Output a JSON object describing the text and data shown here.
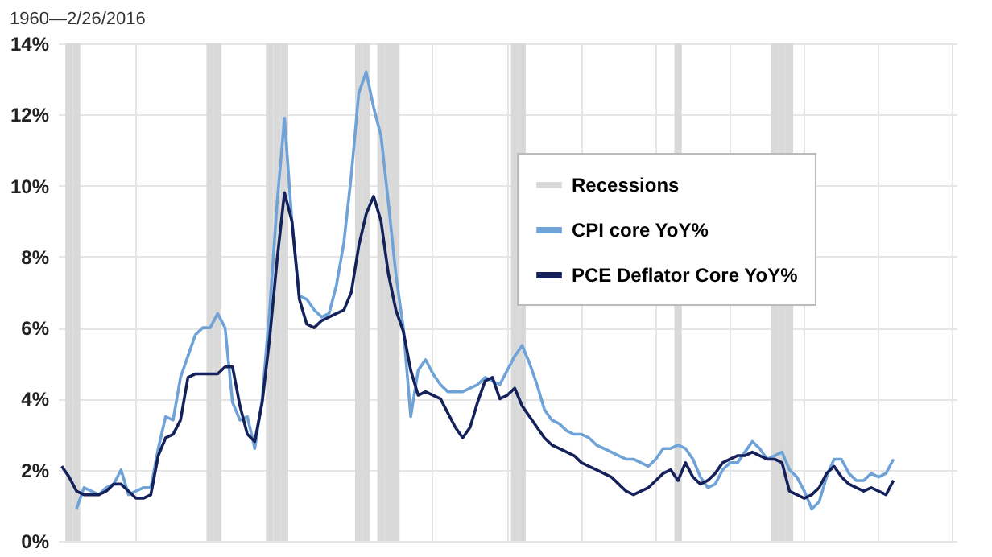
{
  "chart_data": {
    "type": "line",
    "title": "1960—2/26/2016",
    "categories": [
      null,
      null,
      null,
      null,
      null,
      null,
      null,
      null,
      null,
      null,
      null,
      null,
      null,
      null,
      null,
      null,
      null,
      null,
      null,
      null,
      null,
      null,
      null,
      null,
      null,
      null,
      null,
      null,
      null,
      null,
      null,
      null,
      null,
      null,
      null,
      null,
      null,
      null,
      null,
      null,
      null,
      null,
      null,
      null,
      null,
      null,
      null,
      null,
      null,
      null,
      null,
      null,
      null,
      null,
      null,
      null,
      null,
      null,
      null,
      null,
      null,
      null,
      null,
      null,
      null,
      null,
      null,
      null,
      null,
      null,
      null,
      null,
      null,
      null,
      null,
      null,
      null,
      null,
      null,
      null,
      null,
      null,
      null,
      null,
      null,
      null,
      null,
      null,
      null,
      null,
      null,
      null,
      null,
      null,
      null,
      null,
      null,
      null,
      null,
      null,
      null,
      null,
      null,
      null,
      null,
      null,
      null,
      null,
      null,
      null,
      null,
      null,
      null,
      null,
      null,
      null,
      null,
      null,
      null,
      null,
      null
    ],
    "ylim": [
      0,
      14
    ],
    "yticks": [
      {
        "value": 0,
        "label": "0%"
      },
      {
        "value": 2,
        "label": "2%"
      },
      {
        "value": 4,
        "label": "4%"
      },
      {
        "value": 6,
        "label": "6%"
      },
      {
        "value": 8,
        "label": "8%"
      },
      {
        "value": 10,
        "label": "10%"
      },
      {
        "value": 12,
        "label": "12%"
      },
      {
        "value": 14,
        "label": "14%"
      }
    ],
    "tick_labels": "y",
    "grid": true,
    "legend": "top right",
    "line_style": "solid",
    "marker": "none",
    "series": [
      {
        "name": "Recessions",
        "type": "bar",
        "color": "#d9d9d9",
        "values": [
          null,
          14,
          14,
          null,
          null,
          null,
          null,
          null,
          null,
          null,
          null,
          null,
          null,
          null,
          null,
          null,
          null,
          null,
          null,
          null,
          14,
          14,
          null,
          null,
          null,
          null,
          null,
          null,
          14,
          14,
          14,
          null,
          null,
          null,
          null,
          null,
          null,
          null,
          null,
          null,
          14,
          14,
          null,
          14,
          14,
          14,
          null,
          null,
          null,
          null,
          null,
          null,
          null,
          null,
          null,
          null,
          null,
          null,
          null,
          null,
          null,
          14,
          14,
          null,
          null,
          null,
          null,
          null,
          null,
          null,
          null,
          null,
          null,
          null,
          null,
          null,
          null,
          null,
          null,
          null,
          null,
          null,
          null,
          14,
          null,
          null,
          null,
          null,
          null,
          null,
          null,
          null,
          null,
          null,
          null,
          null,
          14,
          14,
          14,
          null,
          null,
          null,
          null,
          null,
          null,
          null,
          null,
          null,
          null,
          null,
          null,
          null,
          null,
          null,
          null,
          null,
          null,
          null,
          null,
          null,
          null
        ]
      },
      {
        "name": "CPI core YoY%",
        "color": "#6fa3d8",
        "values": [
          null,
          null,
          0.9,
          1.5,
          1.4,
          1.3,
          1.5,
          1.6,
          2.0,
          1.3,
          1.4,
          1.5,
          1.5,
          2.6,
          3.5,
          3.4,
          4.6,
          5.2,
          5.8,
          6.0,
          6.0,
          6.4,
          6.0,
          3.9,
          3.4,
          3.5,
          2.6,
          4.0,
          6.5,
          9.5,
          11.9,
          9.0,
          6.9,
          6.8,
          6.5,
          6.3,
          6.4,
          7.2,
          8.4,
          10.3,
          12.6,
          13.2,
          12.2,
          11.4,
          9.5,
          7.5,
          6.0,
          3.5,
          4.8,
          5.1,
          4.7,
          4.4,
          4.2,
          4.2,
          4.2,
          4.3,
          4.4,
          4.6,
          4.5,
          4.4,
          4.8,
          5.2,
          5.5,
          5.0,
          4.4,
          3.7,
          3.4,
          3.3,
          3.1,
          3.0,
          3.0,
          2.9,
          2.7,
          2.6,
          2.5,
          2.4,
          2.3,
          2.3,
          2.2,
          2.1,
          2.3,
          2.6,
          2.6,
          2.7,
          2.6,
          2.3,
          1.8,
          1.5,
          1.6,
          2.0,
          2.2,
          2.2,
          2.5,
          2.8,
          2.6,
          2.3,
          2.4,
          2.5,
          2.0,
          1.8,
          1.4,
          0.9,
          1.1,
          1.8,
          2.3,
          2.3,
          1.9,
          1.7,
          1.7,
          1.9,
          1.8,
          1.9,
          2.3,
          null,
          null,
          null,
          null,
          null,
          null,
          null,
          null
        ]
      },
      {
        "name": "PCE Deflator Core YoY%",
        "color": "#14215a",
        "values": [
          2.1,
          1.8,
          1.4,
          1.3,
          1.3,
          1.3,
          1.4,
          1.6,
          1.6,
          1.4,
          1.2,
          1.2,
          1.3,
          2.4,
          2.9,
          3.0,
          3.4,
          4.6,
          4.7,
          4.7,
          4.7,
          4.7,
          4.9,
          4.9,
          3.8,
          3.0,
          2.8,
          3.9,
          5.7,
          7.9,
          9.8,
          9.0,
          6.8,
          6.1,
          6.0,
          6.2,
          6.3,
          6.4,
          6.5,
          7.0,
          8.3,
          9.2,
          9.7,
          9.0,
          7.5,
          6.5,
          5.9,
          4.8,
          4.1,
          4.2,
          4.1,
          4.0,
          3.6,
          3.2,
          2.9,
          3.2,
          3.9,
          4.5,
          4.6,
          4.0,
          4.1,
          4.3,
          3.8,
          3.5,
          3.2,
          2.9,
          2.7,
          2.6,
          2.5,
          2.4,
          2.2,
          2.1,
          2.0,
          1.9,
          1.8,
          1.6,
          1.4,
          1.3,
          1.4,
          1.5,
          1.7,
          1.9,
          2.0,
          1.7,
          2.2,
          1.8,
          1.6,
          1.7,
          1.9,
          2.2,
          2.3,
          2.4,
          2.4,
          2.5,
          2.4,
          2.3,
          2.3,
          2.2,
          1.4,
          1.3,
          1.2,
          1.3,
          1.5,
          1.9,
          2.1,
          1.8,
          1.6,
          1.5,
          1.4,
          1.5,
          1.4,
          1.3,
          1.7,
          null,
          null,
          null,
          null,
          null,
          null,
          null,
          null
        ]
      }
    ]
  }
}
